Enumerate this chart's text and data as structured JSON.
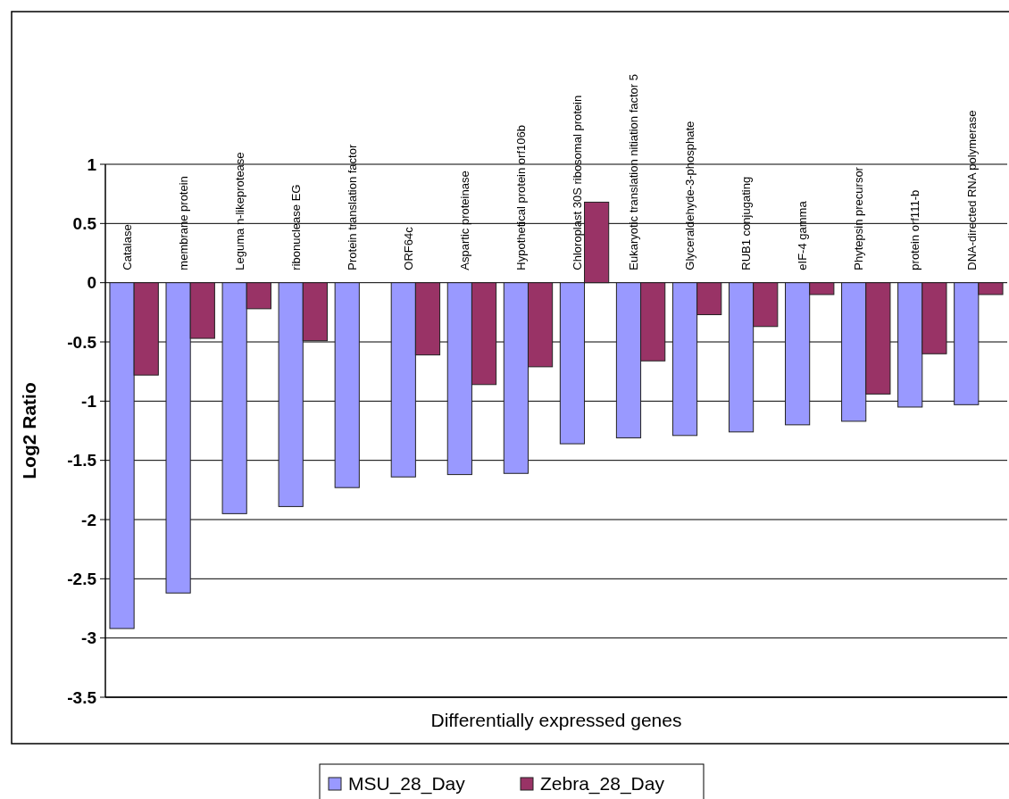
{
  "chart_data": {
    "type": "bar",
    "xlabel": "Differentially expressed genes",
    "ylabel": "Log2 Ratio",
    "categories": [
      "Catalase",
      "membrane protein",
      "Leguma n-likeprotease",
      "ribonuclease EG",
      "Protein translation factor",
      "ORF64c",
      "Aspartic proteinase",
      "Hypothetical protein orf106b",
      "Chloroplast 30S ribosomal protein",
      "Eukaryotic translation nitiation factor 5",
      "Glyceraldehyde-3-phosphate",
      "RUB1 conjugating",
      "eIF-4 gamma",
      "Phytepsin precursor",
      "protein orf111-b",
      "DNA-directed RNA polymerase"
    ],
    "series": [
      {
        "name": "MSU_28_Day",
        "color": "#9999ff",
        "values": [
          -2.92,
          -2.62,
          -1.95,
          -1.89,
          -1.73,
          -1.64,
          -1.62,
          -1.61,
          -1.36,
          -1.31,
          -1.29,
          -1.26,
          -1.2,
          -1.17,
          -1.05,
          -1.03
        ]
      },
      {
        "name": "Zebra_28_Day",
        "color": "#993366",
        "values": [
          -0.78,
          -0.47,
          -0.22,
          -0.49,
          null,
          -0.61,
          -0.86,
          -0.71,
          0.68,
          -0.66,
          -0.27,
          -0.37,
          -0.1,
          -0.94,
          -0.6,
          -0.1
        ]
      }
    ],
    "ylim": [
      -3.5,
      1
    ],
    "yticks": [
      -3.5,
      -3,
      -2.5,
      -2,
      -1.5,
      -1,
      -0.5,
      0,
      0.5,
      1
    ],
    "grid": "y",
    "legend": "bottom"
  }
}
